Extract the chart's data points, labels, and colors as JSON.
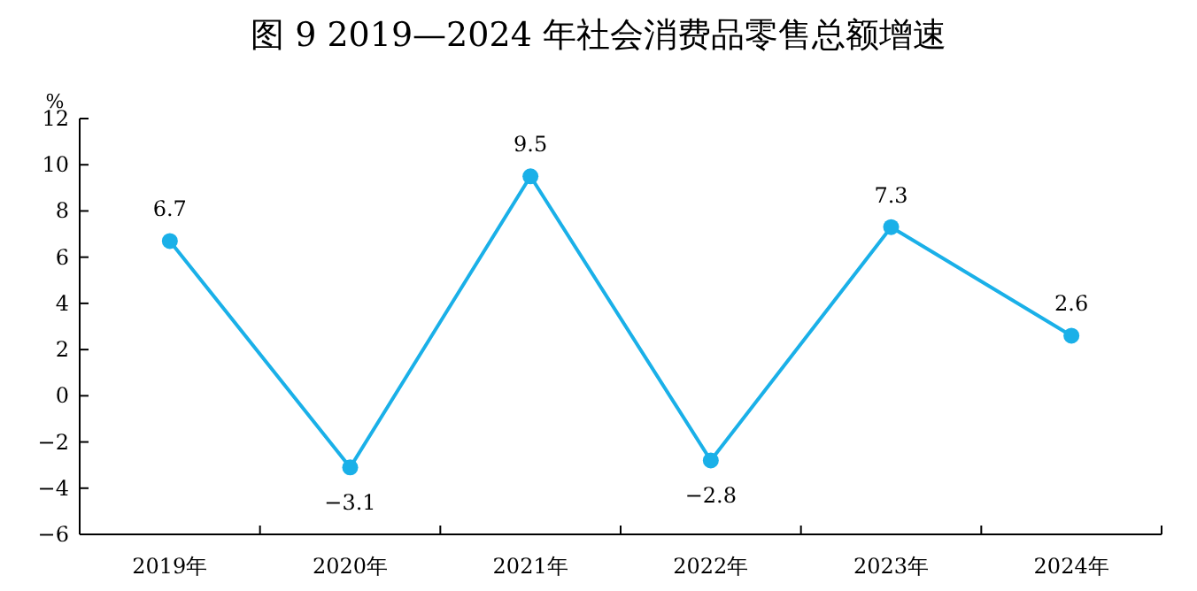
{
  "chart_data": {
    "type": "line",
    "title": "图 9   2019—2024 年社会消费品零售总额增速",
    "ylabel": "%",
    "categories": [
      "2019年",
      "2020年",
      "2021年",
      "2022年",
      "2023年",
      "2024年"
    ],
    "series": [
      {
        "color": "#1ab0e8",
        "values": [
          6.7,
          -3.1,
          9.5,
          -2.8,
          7.3,
          2.6
        ]
      }
    ],
    "ylim": [
      -6,
      12
    ],
    "yticks": [
      -6,
      -4,
      -2,
      0,
      2,
      4,
      6,
      8,
      10,
      12
    ],
    "data_labels": true,
    "marker": "circle"
  }
}
